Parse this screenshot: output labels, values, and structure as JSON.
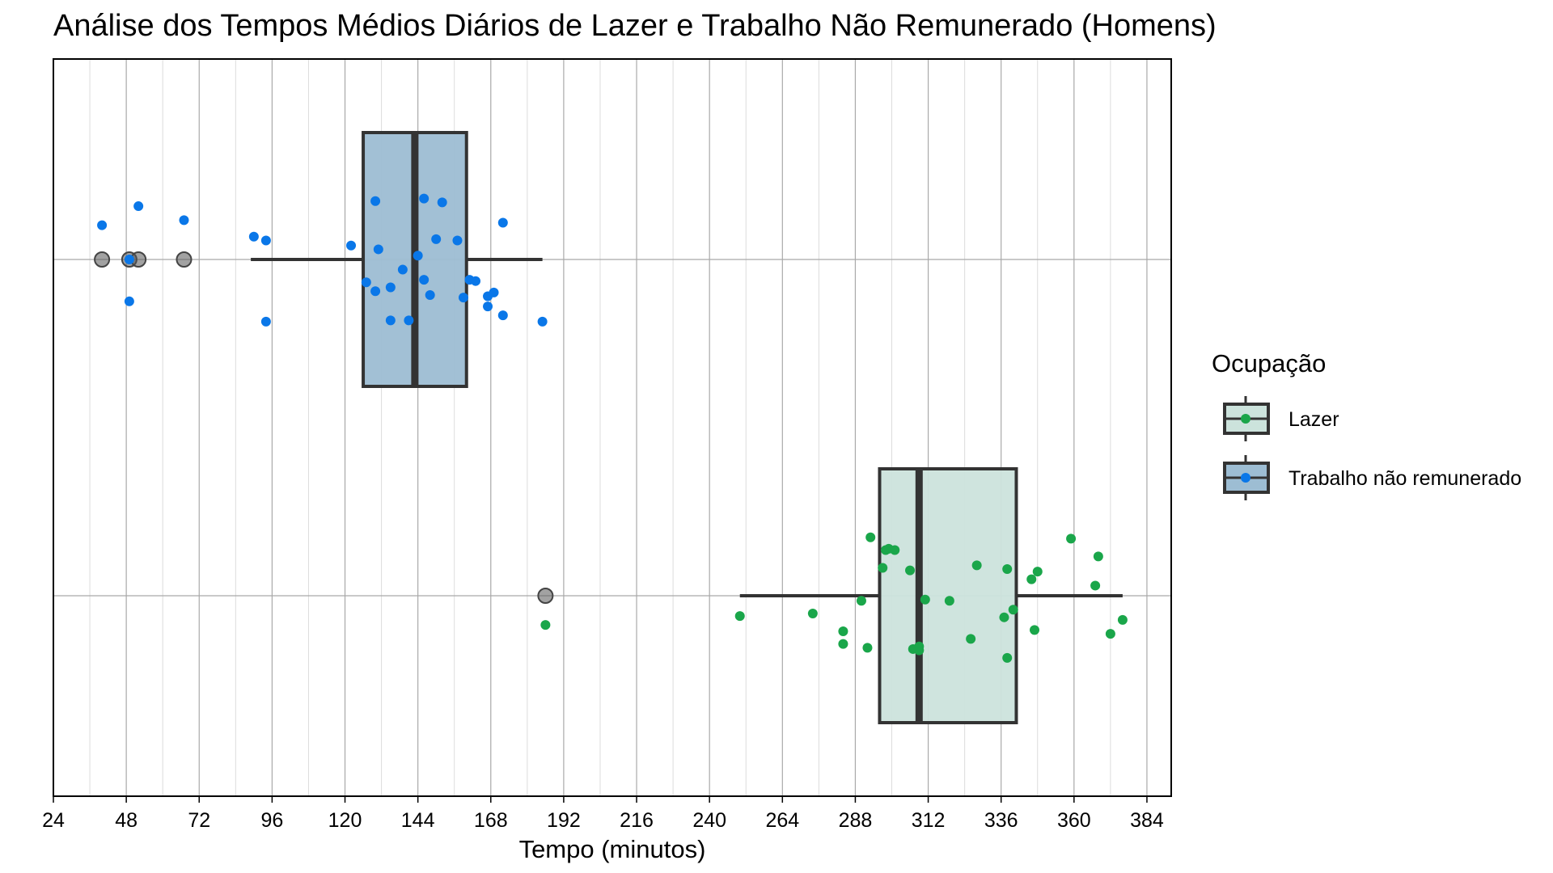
{
  "chart_data": {
    "type": "boxplot",
    "title": "Análise dos Tempos Médios Diários de Lazer e Trabalho Não Remunerado (Homens)",
    "xlabel": "Tempo (minutos)",
    "ylabel": "",
    "xlim": [
      24,
      392
    ],
    "x_ticks": [
      24,
      48,
      72,
      96,
      120,
      144,
      168,
      192,
      216,
      240,
      264,
      288,
      312,
      336,
      360,
      384
    ],
    "grid": true,
    "legend": {
      "title": "Ocupação",
      "position": "right",
      "entries": [
        {
          "label": "Lazer",
          "color": "#1aa64a",
          "fill": "#cce3dc"
        },
        {
          "label": "Trabalho não remunerado",
          "color": "#0a77e8",
          "fill": "#9dbdd3"
        }
      ]
    },
    "series": [
      {
        "name": "Trabalho não remunerado",
        "box": {
          "whisker_low": 89,
          "q1": 126,
          "median": 143,
          "q3": 160,
          "whisker_high": 185
        },
        "outliers": [
          40,
          49,
          52,
          67
        ],
        "jitter": [
          [
            40,
            0.27
          ],
          [
            49,
            0.0
          ],
          [
            52,
            0.42
          ],
          [
            67,
            0.31
          ],
          [
            49,
            -0.33
          ],
          [
            90,
            0.18
          ],
          [
            94,
            0.15
          ],
          [
            94,
            -0.49
          ],
          [
            122,
            0.11
          ],
          [
            127,
            -0.18
          ],
          [
            130,
            -0.25
          ],
          [
            130,
            0.46
          ],
          [
            131,
            0.08
          ],
          [
            135,
            -0.22
          ],
          [
            135,
            -0.48
          ],
          [
            139,
            -0.08
          ],
          [
            141,
            -0.48
          ],
          [
            144,
            0.03
          ],
          [
            146,
            -0.16
          ],
          [
            146,
            0.48
          ],
          [
            148,
            -0.28
          ],
          [
            150,
            0.16
          ],
          [
            152,
            0.45
          ],
          [
            157,
            0.15
          ],
          [
            159,
            -0.3
          ],
          [
            161,
            -0.16
          ],
          [
            163,
            -0.17
          ],
          [
            167,
            -0.37
          ],
          [
            167,
            -0.29
          ],
          [
            169,
            -0.26
          ],
          [
            172,
            -0.44
          ],
          [
            172,
            0.29
          ],
          [
            185,
            -0.49
          ]
        ]
      },
      {
        "name": "Lazer",
        "box": {
          "whisker_low": 250,
          "q1": 296,
          "median": 309,
          "q3": 341,
          "whisker_high": 376
        },
        "outliers": [
          186
        ],
        "jitter": [
          [
            186,
            -0.23
          ],
          [
            250,
            -0.16
          ],
          [
            274,
            -0.14
          ],
          [
            284,
            -0.28
          ],
          [
            284,
            -0.38
          ],
          [
            290,
            -0.04
          ],
          [
            292,
            -0.41
          ],
          [
            293,
            0.46
          ],
          [
            297,
            0.22
          ],
          [
            298,
            0.36
          ],
          [
            299,
            0.37
          ],
          [
            301,
            0.36
          ],
          [
            306,
            0.2
          ],
          [
            307,
            -0.42
          ],
          [
            309,
            -0.4
          ],
          [
            309,
            -0.43
          ],
          [
            311,
            -0.03
          ],
          [
            319,
            -0.04
          ],
          [
            326,
            -0.34
          ],
          [
            328,
            0.24
          ],
          [
            337,
            -0.17
          ],
          [
            338,
            -0.49
          ],
          [
            338,
            0.21
          ],
          [
            340,
            -0.11
          ],
          [
            346,
            0.13
          ],
          [
            347,
            -0.27
          ],
          [
            348,
            0.19
          ],
          [
            359,
            0.45
          ],
          [
            367,
            0.08
          ],
          [
            368,
            0.31
          ],
          [
            372,
            -0.3
          ],
          [
            376,
            -0.19
          ]
        ]
      }
    ]
  }
}
